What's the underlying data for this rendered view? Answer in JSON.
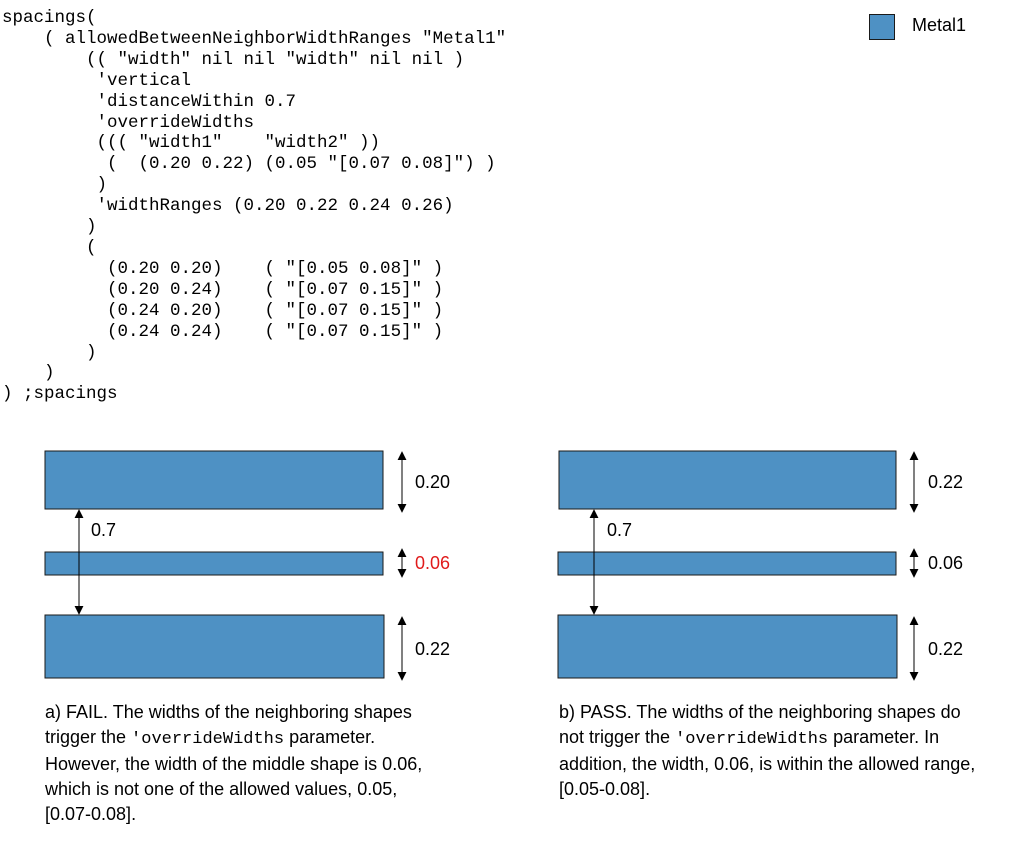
{
  "code": {
    "lines": [
      "spacings(",
      "    ( allowedBetweenNeighborWidthRanges \"Metal1\"",
      "        (( \"width\" nil nil \"width\" nil nil )",
      "         'vertical",
      "         'distanceWithin 0.7",
      "         'overrideWidths",
      "         ((( \"width1\"    \"width2\" ))",
      "          (  (0.20 0.22) (0.05 \"[0.07 0.08]\") )",
      "         )",
      "         'widthRanges (0.20 0.22 0.24 0.26)",
      "        )",
      "        (",
      "          (0.20 0.20)    ( \"[0.05 0.08]\" )",
      "          (0.20 0.24)    ( \"[0.07 0.15]\" )",
      "          (0.24 0.20)    ( \"[0.07 0.15]\" )",
      "          (0.24 0.24)    ( \"[0.07 0.15]\" )",
      "        )",
      "    )",
      ") ;spacings"
    ]
  },
  "legend": {
    "label": "Metal1",
    "color": "#4e91c4"
  },
  "colors": {
    "fill": "#4e91c4",
    "fail_text": "#e01b1b"
  },
  "panels": [
    {
      "top_width": "0.20",
      "distance": "0.7",
      "middle_width": "0.06",
      "bottom_width": "0.22",
      "result": "fail",
      "caption": {
        "part1": "a) FAIL. The widths of the neighboring shapes trigger the ",
        "code": "'overrideWidths",
        "part2": " parameter. However, the width of the middle shape is 0.06, which is not one of the allowed values, 0.05, [0.07-0.08]."
      }
    },
    {
      "top_width": "0.22",
      "distance": "0.7",
      "middle_width": "0.06",
      "bottom_width": "0.22",
      "result": "pass",
      "caption": {
        "part1": "b) PASS. The widths of the neighboring shapes do not trigger the ",
        "code": "'overrideWidths",
        "part2": " parameter. In addition, the width, 0.06, is within the allowed range, [0.05-0.08]."
      }
    }
  ]
}
